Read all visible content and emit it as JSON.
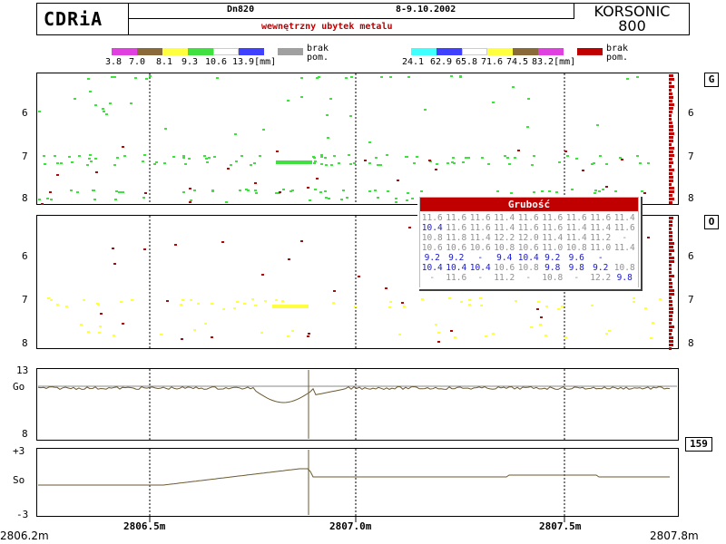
{
  "header": {
    "logo": "CDRiA",
    "pipe": "Dn820",
    "date": "8-9.10.2002",
    "subtitle": "wewnętrzny ubytek metalu",
    "brand_line1": "KORSONIC",
    "brand_line2": "800"
  },
  "legend_left": {
    "colors": [
      "#e040e0",
      "#8b6a3a",
      "#ffff40",
      "#40e040",
      "#ffffff",
      "#4040ff"
    ],
    "labels": [
      "3.8",
      "7.0",
      "8.1",
      "9.3",
      "10.6",
      "13.9[mm]"
    ],
    "missing_color": "#a0a0a0",
    "missing_label1": "brak",
    "missing_label2": "pom."
  },
  "legend_right": {
    "colors": [
      "#40ffff",
      "#4040ff",
      "#ffffff",
      "#ffff40",
      "#8b6a3a",
      "#e040e0"
    ],
    "labels": [
      "24.1",
      "62.9",
      "65.8",
      "71.6",
      "74.5",
      "83.2[mm]"
    ],
    "missing_color": "#c00000",
    "missing_label1": "brak",
    "missing_label2": "pom."
  },
  "panels": {
    "G": {
      "label": "G",
      "y_ticks": [
        "6",
        "7",
        "8"
      ]
    },
    "O": {
      "label": "O",
      "y_ticks": [
        "6",
        "7",
        "8"
      ]
    }
  },
  "go_panel": {
    "top_label": "13",
    "mid_label": "Go",
    "bottom_label": "8",
    "side_value": "159"
  },
  "so_panel": {
    "top_label": "+3",
    "mid_label": "So",
    "bottom_label": "-3"
  },
  "x_axis": {
    "start": "2806.2m",
    "ticks": [
      "2806.5m",
      "2807.0m",
      "2807.5m"
    ],
    "end": "2807.8m"
  },
  "popup": {
    "title": "Grubość",
    "rows": [
      {
        "color": "gray",
        "values": [
          "11.6",
          "11.6",
          "11.6",
          "11.4",
          "11.6",
          "11.6",
          "11.6",
          "11.6",
          "11.4"
        ]
      },
      {
        "color": "mixed1",
        "values": [
          "10.4",
          "11.6",
          "11.6",
          "11.4",
          "11.6",
          "11.6",
          "11.4",
          "11.4",
          "11.6"
        ]
      },
      {
        "color": "gray",
        "values": [
          "10.8",
          "11.8",
          "11.4",
          "12.2",
          "12.0",
          "11.4",
          "11.4",
          "11.2",
          "-"
        ]
      },
      {
        "color": "gray",
        "values": [
          "10.6",
          "10.6",
          "10.6",
          "10.8",
          "10.6",
          "11.0",
          "10.8",
          "11.0",
          "11.4"
        ]
      },
      {
        "color": "blue",
        "values": [
          "9.2",
          "9.2",
          "-",
          "9.4",
          "10.4",
          "9.2",
          "9.6",
          "-",
          ""
        ]
      },
      {
        "color": "mixed2",
        "values": [
          "10.4",
          "10.4",
          "10.4",
          "10.6",
          "10.8",
          "9.8",
          "9.8",
          "9.2",
          "10.8"
        ]
      },
      {
        "color": "mixed3",
        "values": [
          "-",
          "11.6",
          "-",
          "11.2",
          "-",
          "10.8",
          "-",
          "12.2",
          "9.8"
        ]
      }
    ]
  }
}
